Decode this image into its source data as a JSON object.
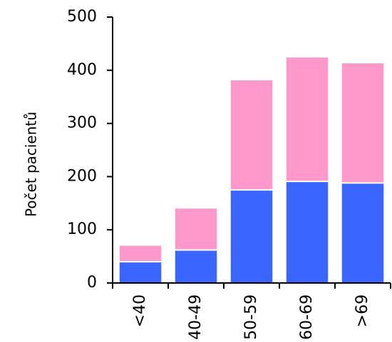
{
  "chart_data": {
    "type": "bar",
    "stacked": true,
    "categories": [
      "<40",
      "40-49",
      "50-59",
      "60-69",
      ">69"
    ],
    "series": [
      {
        "values": [
          40,
          62,
          175,
          191,
          188
        ],
        "color": "#3a66ff"
      },
      {
        "values": [
          30,
          78,
          206,
          233,
          225
        ],
        "color": "#ff99cc"
      }
    ],
    "title": "",
    "xlabel": "",
    "ylabel": "Počet pacientů",
    "ylim": [
      0,
      500
    ],
    "yticks": [
      0,
      100,
      200,
      300,
      400,
      500
    ],
    "grid": false,
    "legend": "none"
  }
}
